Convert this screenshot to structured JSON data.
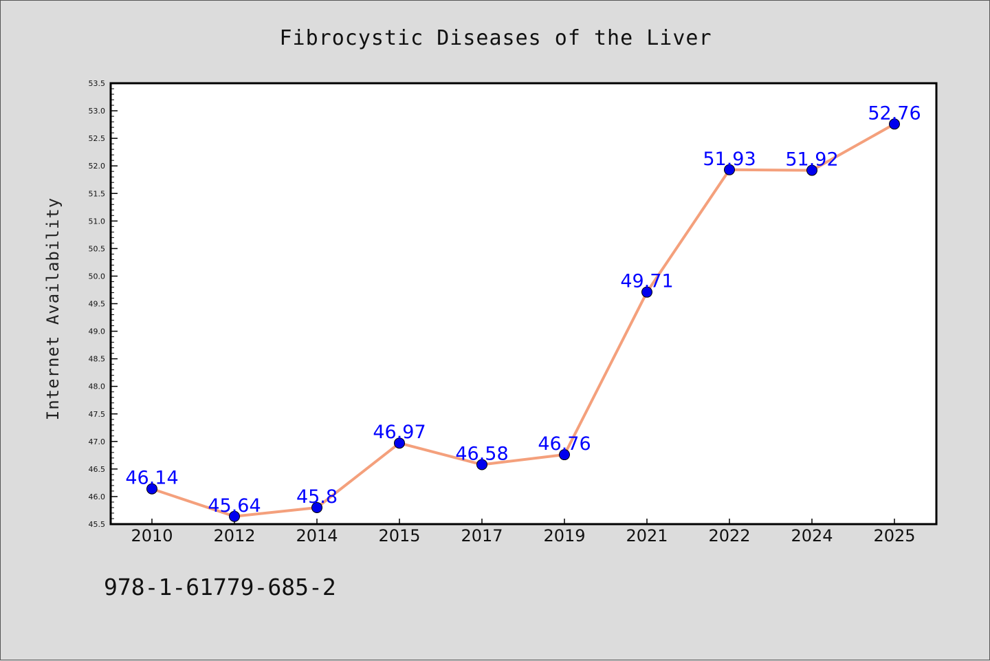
{
  "chart_data": {
    "type": "line",
    "title": "Fibrocystic Diseases of the Liver",
    "xlabel": "",
    "ylabel": "Internet Availability",
    "categories": [
      "2010",
      "2012",
      "2014",
      "2015",
      "2017",
      "2019",
      "2021",
      "2022",
      "2024",
      "2025"
    ],
    "values": [
      46.14,
      45.64,
      45.8,
      46.97,
      46.58,
      46.76,
      49.71,
      51.93,
      51.92,
      52.76
    ],
    "data_labels": [
      "46.14",
      "45.64",
      "45.8",
      "46.97",
      "46.58",
      "46.76",
      "49.71",
      "51.93",
      "51.92",
      "52.76"
    ],
    "ylim": [
      45.5,
      53.5
    ],
    "yticks": [
      "45.5",
      "46.0",
      "46.5",
      "47.0",
      "47.5",
      "48.0",
      "48.5",
      "49.0",
      "49.5",
      "50.0",
      "50.5",
      "51.0",
      "51.5",
      "52.0",
      "52.5",
      "53.0",
      "53.5"
    ],
    "grid": false,
    "line_color": "#f4a07c",
    "marker_color": "#0000ee",
    "label_color": "#0000ff"
  },
  "footnote": "978-1-61779-685-2"
}
